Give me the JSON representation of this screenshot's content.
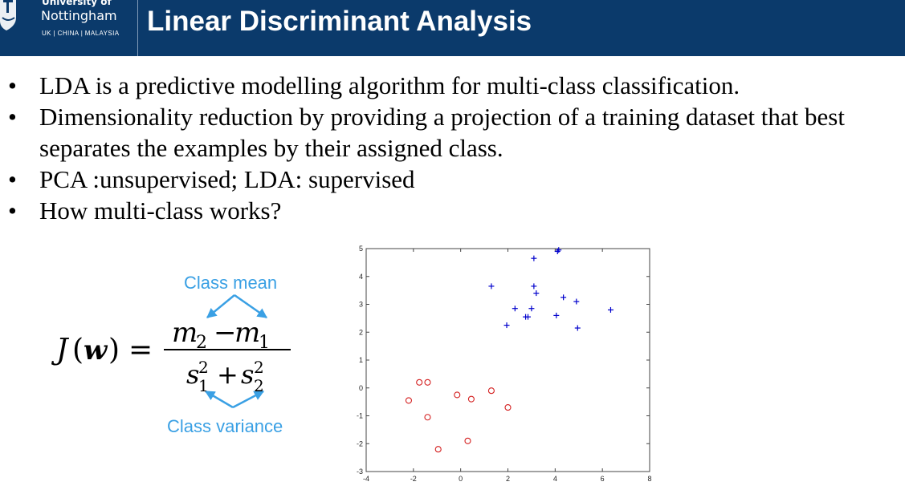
{
  "header": {
    "logo": {
      "line1": "University of",
      "line2": "Nottingham",
      "line3": "UK | CHINA | MALAYSIA"
    },
    "title": "Linear Discriminant Analysis"
  },
  "bullets": [
    "LDA is a predictive modelling algorithm for multi-class classification.",
    "Dimensionality reduction by providing a projection of a training dataset that best separates the examples by their assigned class.",
    "PCA :unsupervised; LDA: supervised",
    "How multi-class works?"
  ],
  "diagram": {
    "top_label": "Class mean",
    "bottom_label": "Class variance",
    "formula": "J(w) = (m2 − m1) / (s1² + s2²)",
    "arrow_color": "#3aa0e4"
  },
  "chart_data": {
    "type": "scatter",
    "xlim": [
      -4,
      8
    ],
    "ylim": [
      -3,
      5
    ],
    "xticks": [
      -4,
      -2,
      0,
      2,
      4,
      6,
      8
    ],
    "yticks": [
      -3,
      -2,
      -1,
      0,
      1,
      2,
      3,
      4,
      5
    ],
    "grid": false,
    "series": [
      {
        "marker": "+",
        "color": "#0000cc",
        "x": [
          3.1,
          4.15,
          4.1,
          1.3,
          3.1,
          3.2,
          4.35,
          2.3,
          3.0,
          4.9,
          2.75,
          2.85,
          4.05,
          1.95,
          4.95,
          6.35
        ],
        "y": [
          4.65,
          4.95,
          4.9,
          3.65,
          3.65,
          3.4,
          3.25,
          2.85,
          2.85,
          3.1,
          2.55,
          2.55,
          2.6,
          2.25,
          2.15,
          2.8
        ]
      },
      {
        "marker": "o",
        "color": "#d42020",
        "x": [
          -1.75,
          -1.4,
          -2.2,
          -0.15,
          0.45,
          1.3,
          2.0,
          -1.4,
          0.3,
          -0.95
        ],
        "y": [
          0.2,
          0.2,
          -0.45,
          -0.25,
          -0.4,
          -0.1,
          -0.7,
          -1.05,
          -1.9,
          -2.2
        ]
      }
    ]
  }
}
